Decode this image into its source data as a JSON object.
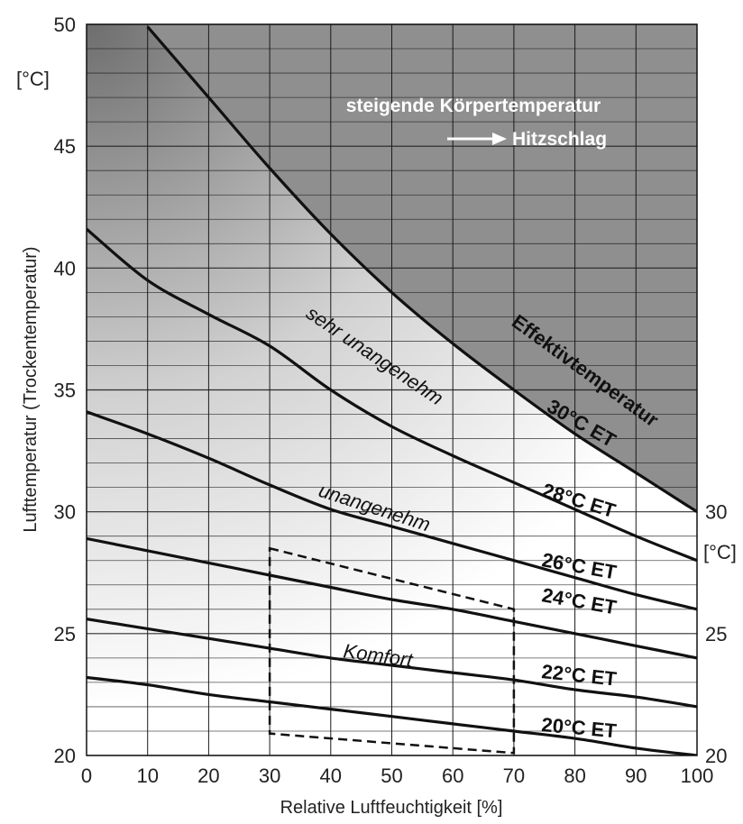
{
  "chart_data": {
    "type": "line",
    "title": "",
    "xlabel": "Relative Luftfeuchtigkeit [%]",
    "ylabel": "Lufttemperatur (Trockentemperatur)",
    "y_unit": "[°C]",
    "xlim": [
      0,
      100
    ],
    "ylim": [
      20,
      50
    ],
    "x_ticks": [
      "0",
      "10",
      "20",
      "30",
      "40",
      "50",
      "60",
      "70",
      "80",
      "90",
      "100"
    ],
    "y_ticks_left": [
      "20",
      "25",
      "30",
      "35",
      "40",
      "45",
      "50"
    ],
    "y_ticks_right": [
      "20",
      "25",
      "30"
    ],
    "grid": true,
    "x": [
      0,
      10,
      20,
      30,
      40,
      50,
      60,
      70,
      80,
      90,
      100
    ],
    "series": [
      {
        "name": "20°C ET",
        "values": [
          23.2,
          22.9,
          22.5,
          22.2,
          21.9,
          21.6,
          21.3,
          21.0,
          20.7,
          20.3,
          20.0
        ]
      },
      {
        "name": "22°C ET",
        "values": [
          25.6,
          25.2,
          24.8,
          24.4,
          24.0,
          23.7,
          23.4,
          23.1,
          22.7,
          22.4,
          22.0
        ]
      },
      {
        "name": "24°C ET",
        "values": [
          28.9,
          28.4,
          27.9,
          27.4,
          26.9,
          26.4,
          26.0,
          25.5,
          25.0,
          24.5,
          24.0
        ]
      },
      {
        "name": "26°C ET",
        "values": [
          34.1,
          33.2,
          32.2,
          31.1,
          30.1,
          29.4,
          28.7,
          28.0,
          27.3,
          26.6,
          26.0
        ]
      },
      {
        "name": "28°C ET",
        "values": [
          41.6,
          39.5,
          38.1,
          36.8,
          35.0,
          33.5,
          32.3,
          31.2,
          30.1,
          29.0,
          28.0
        ]
      },
      {
        "name": "30°C ET",
        "values": [
          null,
          49.9,
          47.0,
          44.1,
          41.4,
          39.0,
          36.9,
          35.0,
          33.2,
          31.6,
          30.0
        ]
      }
    ],
    "annotations": {
      "hot_line1": "steigende Körpertemperatur",
      "hot_arrow_text": "Hitzschlag",
      "effektiv": "Effektivtemperatur",
      "zone_very": "sehr unangenehm",
      "zone_un": "unangenehm",
      "zone_comfort": "Komfort"
    },
    "comfort_box": {
      "left_x": 30,
      "right_x": 70,
      "top_left_y": 28.5,
      "top_right_y": 26.0,
      "bottom_left_y": 20.9,
      "bottom_right_y": 20.1
    },
    "colors": {
      "hot_region": "#8f8f8f",
      "gradient_dark": "#6e6e6e",
      "gradient_light": "#ffffff",
      "curve": "#111111",
      "grid": "#1a1a1a"
    }
  }
}
